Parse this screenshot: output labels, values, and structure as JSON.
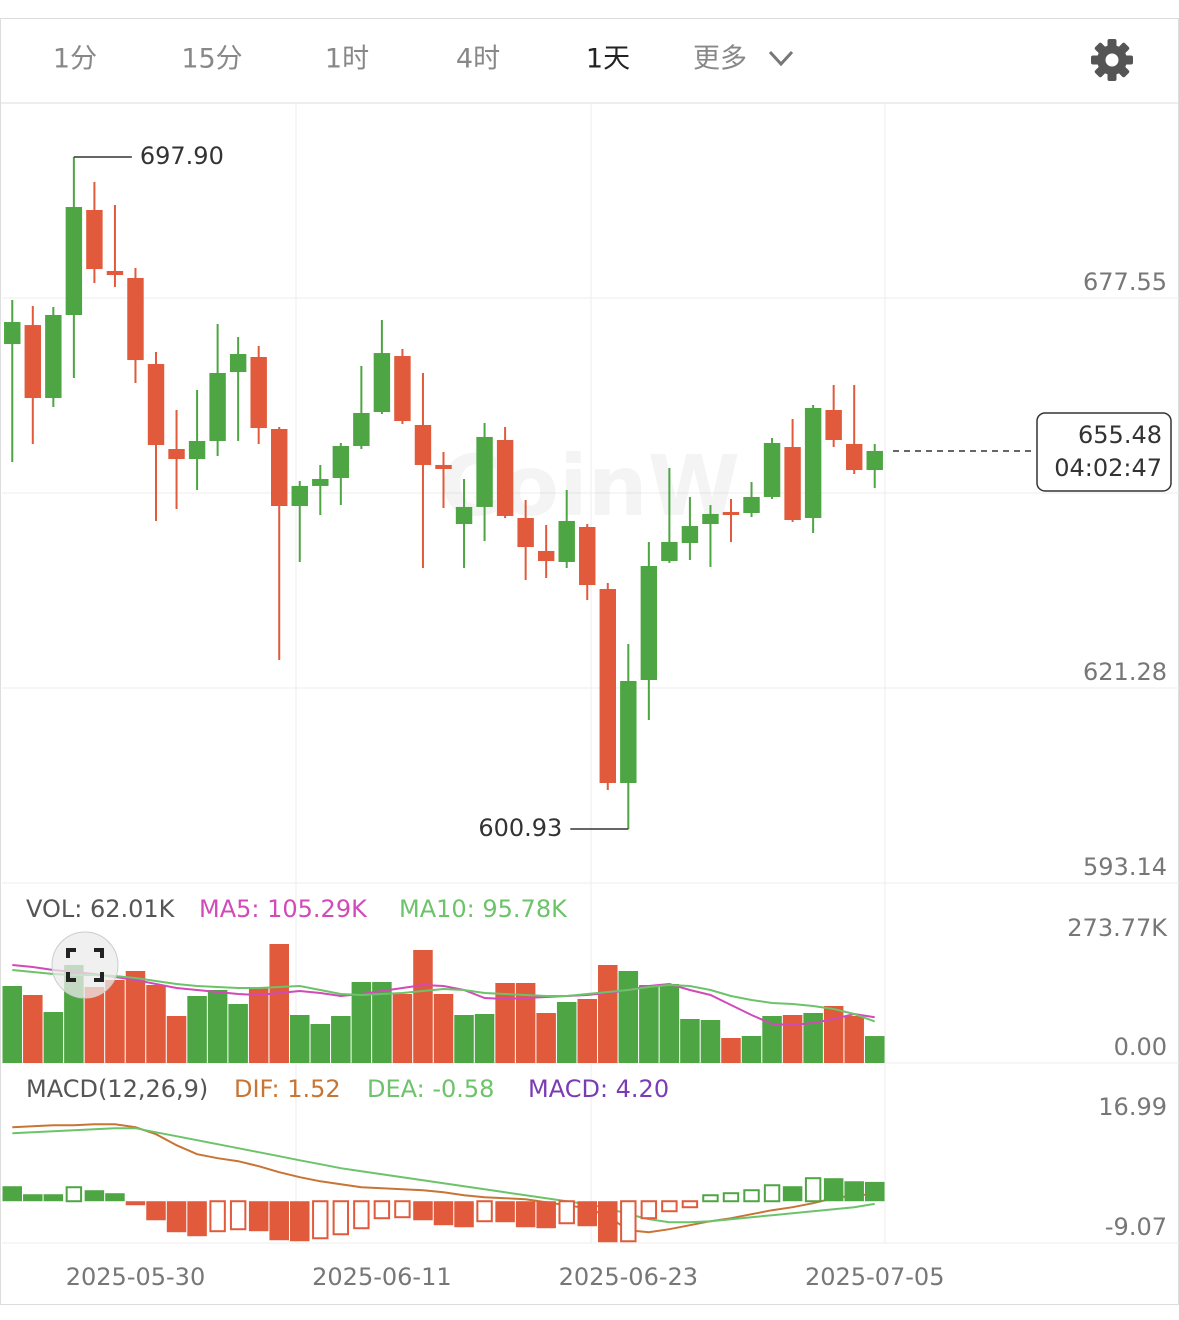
{
  "tabs": [
    "1分",
    "15分",
    "1时",
    "4时",
    "1天",
    "更多"
  ],
  "active_tab": 4,
  "chart_data": [
    {
      "type": "candlestick",
      "watermark": "CoinW",
      "categories": [
        null,
        null,
        null,
        null,
        null,
        null,
        "2025-05-30",
        null,
        null,
        null,
        null,
        null,
        null,
        null,
        null,
        null,
        null,
        null,
        "2025-06-11",
        null,
        null,
        null,
        null,
        null,
        null,
        null,
        null,
        null,
        null,
        null,
        "2025-06-23",
        null,
        null,
        null,
        null,
        null,
        null,
        null,
        null,
        null,
        null,
        null,
        "2025-07-05"
      ],
      "open": [
        670.91,
        673.65,
        663.12,
        675.1,
        690.25,
        681.45,
        680.44,
        668.03,
        655.76,
        654.32,
        656.92,
        666.87,
        669.04,
        658.65,
        647.54,
        650.43,
        651.58,
        656.2,
        661.1,
        669.18,
        659.23,
        653.46,
        644.94,
        647.4,
        657.06,
        645.81,
        641.05,
        639.46,
        644.51,
        635.56,
        607.57,
        622.43,
        639.6,
        642.2,
        644.94,
        646.67,
        646.53,
        648.84,
        656.05,
        645.81,
        661.39,
        656.49,
        652.73
      ],
      "high": [
        677.26,
        676.4,
        676.25,
        697.9,
        694.29,
        690.97,
        681.88,
        669.76,
        661.39,
        664.28,
        673.8,
        671.92,
        670.62,
        658.94,
        651.15,
        653.46,
        656.63,
        667.74,
        674.38,
        670.19,
        666.73,
        655.33,
        651.44,
        659.52,
        658.94,
        648.41,
        644.8,
        649.85,
        644.94,
        636.43,
        627.63,
        642.35,
        653.02,
        648.84,
        647.68,
        648.55,
        651.0,
        657.35,
        660.09,
        662.11,
        665.0,
        665.0,
        656.49
      ],
      "low": [
        653.89,
        656.49,
        661.82,
        666.01,
        679.71,
        679.14,
        665.29,
        645.38,
        647.11,
        649.85,
        654.75,
        656.92,
        656.49,
        625.32,
        639.46,
        646.24,
        647.68,
        655.76,
        660.81,
        659.37,
        638.59,
        647.25,
        638.59,
        642.49,
        645.81,
        636.86,
        637.15,
        638.59,
        633.98,
        606.56,
        600.93,
        616.66,
        639.31,
        639.75,
        638.74,
        642.35,
        645.95,
        648.55,
        645.23,
        643.64,
        656.05,
        652.16,
        650.14
      ],
      "close": [
        674.09,
        663.12,
        675.1,
        690.68,
        681.73,
        680.87,
        668.6,
        656.34,
        654.32,
        656.92,
        666.73,
        669.47,
        658.79,
        647.54,
        650.43,
        651.44,
        656.2,
        660.96,
        669.61,
        659.8,
        653.46,
        652.88,
        647.4,
        657.5,
        646.1,
        641.62,
        639.6,
        645.38,
        636.14,
        607.57,
        622.29,
        638.88,
        642.35,
        644.65,
        646.39,
        646.24,
        648.84,
        656.63,
        645.52,
        661.68,
        657.06,
        652.73,
        655.48
      ],
      "up_color": "#4ea543",
      "down_color": "#e05a3b",
      "ylim": [
        593.14,
        705.69
      ],
      "yticks": [
        593.14,
        621.28,
        677.55
      ],
      "grid": true,
      "annotations": [
        {
          "value": 697.9,
          "label": "697.90"
        },
        {
          "value": 600.93,
          "label": "600.93"
        }
      ],
      "last_price": {
        "value": 655.48,
        "label": "655.48"
      },
      "countdown": "04:02:47"
    },
    {
      "type": "combo",
      "series": [
        {
          "name": "VOL: 62.01K",
          "type": "bar",
          "color": "#555555",
          "values": [
            177.15,
            156.44,
            117.33,
            225.46,
            174.85,
            190.95,
            211.66,
            179.45,
            108.13,
            154.14,
            167.94,
            135.74,
            172.55,
            273.77,
            110.43,
            89.72,
            108.13,
            186.35,
            186.35,
            158.74,
            259.97,
            158.74,
            110.43,
            112.73,
            184.05,
            184.05,
            115.03,
            140.34,
            147.24,
            225.46,
            211.66,
            179.45,
            181.75,
            101.23,
            98.93,
            57.52,
            62.12,
            108.13,
            110.43,
            115.03,
            131.13,
            108.13,
            62.01
          ]
        },
        {
          "name": "MA5: 105.29K",
          "type": "line",
          "color": "#d14ab8",
          "values": [
            225.5,
            220.9,
            213.9,
            209.4,
            204.8,
            197.9,
            190.9,
            181.7,
            172.5,
            167.9,
            163.3,
            158.7,
            156.4,
            161.0,
            165.6,
            161.0,
            154.1,
            158.7,
            165.6,
            172.5,
            179.4,
            177.1,
            167.9,
            149.5,
            147.2,
            149.5,
            151.8,
            154.1,
            156.4,
            161.0,
            167.9,
            177.1,
            181.7,
            167.9,
            156.4,
            133.4,
            110.4,
            89.7,
            87.4,
            92.0,
            101.2,
            112.7,
            105.29
          ]
        },
        {
          "name": "MA10: 95.78K",
          "type": "line",
          "color": "#6cc36a",
          "values": [
            214.0,
            209.4,
            204.8,
            202.5,
            202.5,
            200.2,
            195.6,
            188.6,
            181.7,
            177.1,
            174.8,
            172.5,
            172.5,
            174.8,
            177.1,
            167.9,
            158.7,
            156.4,
            158.7,
            161.0,
            165.6,
            170.2,
            167.9,
            161.0,
            158.7,
            156.4,
            154.1,
            154.1,
            158.7,
            163.3,
            167.9,
            174.8,
            179.4,
            177.1,
            167.9,
            154.1,
            144.9,
            138.0,
            135.7,
            131.1,
            124.2,
            112.7,
            95.78
          ]
        }
      ],
      "ylim": [
        0,
        414.11
      ],
      "yticks": [
        {
          "value": 0,
          "label": "0.00"
        },
        {
          "value": 273.77,
          "label": "273.77K"
        }
      ]
    },
    {
      "type": "combo",
      "title": "MACD(12,26,9)",
      "up_color": "#4ea543",
      "down_color": "#e05a3b",
      "series": [
        {
          "name": "DIF: 1.52",
          "type": "line",
          "color": "#c87433",
          "values": [
            16.07,
            16.29,
            16.5,
            16.5,
            16.72,
            16.72,
            16.07,
            14.55,
            12.16,
            10.21,
            9.34,
            8.69,
            7.6,
            6.3,
            5.21,
            4.34,
            3.69,
            3.04,
            2.82,
            2.61,
            2.39,
            1.95,
            1.3,
            0.87,
            0.65,
            0.43,
            -0.22,
            -0.87,
            -1.52,
            -3.26,
            -6.3,
            -6.73,
            -6.08,
            -5.21,
            -4.34,
            -3.69,
            -2.82,
            -1.95,
            -1.3,
            -0.43,
            0.65,
            1.3,
            1.52
          ]
        },
        {
          "name": "DEA: -0.58",
          "type": "line",
          "color": "#6cc36a",
          "values": [
            14.77,
            14.98,
            15.2,
            15.42,
            15.64,
            15.85,
            15.85,
            14.98,
            14.12,
            13.25,
            12.38,
            11.51,
            10.64,
            9.77,
            8.9,
            8.04,
            7.17,
            6.52,
            5.86,
            5.21,
            4.56,
            3.91,
            3.26,
            2.61,
            1.95,
            1.3,
            0.65,
            0.0,
            -0.65,
            -1.52,
            -2.82,
            -3.91,
            -4.56,
            -4.56,
            -4.34,
            -3.91,
            -3.47,
            -3.04,
            -2.61,
            -2.17,
            -1.74,
            -1.3,
            -0.58
          ]
        },
        {
          "name": "MACD: 4.20",
          "type": "bar",
          "color": "#7a3cb4",
          "values": [
            3.26,
            1.52,
            1.52,
            3.04,
            2.39,
            1.74,
            -0.87,
            -4.13,
            -6.73,
            -7.6,
            -6.51,
            -6.08,
            -6.51,
            -8.47,
            -8.69,
            -8.04,
            -7.17,
            -5.86,
            -3.69,
            -3.47,
            -4.13,
            -5.21,
            -5.65,
            -4.34,
            -4.56,
            -5.65,
            -5.86,
            -4.78,
            -5.43,
            -8.9,
            -8.69,
            -3.69,
            -2.17,
            -1.3,
            1.3,
            1.74,
            2.39,
            3.47,
            3.26,
            5.0,
            5.0,
            4.34,
            4.2
          ]
        }
      ],
      "ylim": [
        -9.07,
        30.02
      ],
      "yticks": [
        -9.07,
        16.99
      ]
    }
  ]
}
